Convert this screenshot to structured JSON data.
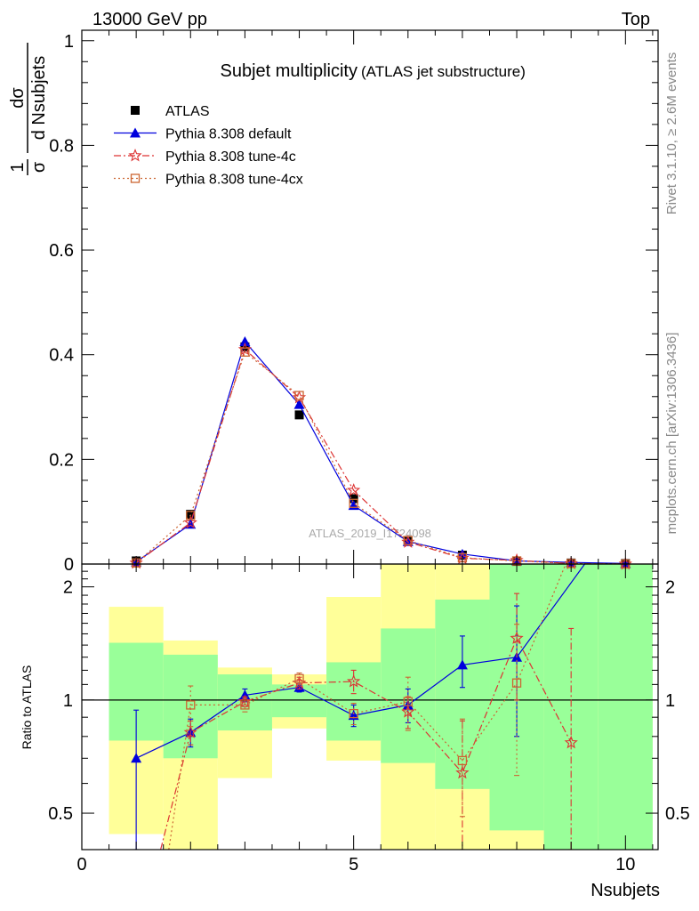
{
  "header": {
    "left": "13000 GeV pp",
    "right": "Top"
  },
  "side_labels": {
    "rivet": "Rivet 3.1.10, ≥ 2.6M events",
    "mcplots": "mcplots.cern.ch [arXiv:1306.3436]"
  },
  "colors": {
    "atlas": "#000000",
    "default": "#0000dd",
    "tune4c": "#dd3333",
    "tune4cx": "#cc6633",
    "band_green": "#99ff99",
    "band_yellow": "#ffff99"
  },
  "chart_data": [
    {
      "type": "scatter",
      "title": "Subjet multiplicity",
      "subtitle": "(ATLAS jet substructure)",
      "ylabel_fraction": {
        "num": "1",
        "den": "σ"
      },
      "ylabel_deriv": {
        "num": "dσ",
        "den": "d Nsubjets"
      },
      "watermark": "ATLAS_2019_I1724098",
      "xlim": [
        0,
        10.6
      ],
      "ylim": [
        0,
        1.02
      ],
      "xticks": [
        0,
        5,
        10
      ],
      "yticks": [
        0,
        0.2,
        0.4,
        0.6,
        0.8,
        1
      ],
      "ytick_labels": [
        "0",
        "0.2",
        "0.4",
        "0.6",
        "0.8",
        "1"
      ],
      "legend_position": "top-left",
      "series": [
        {
          "name": "ATLAS",
          "style": "data",
          "x": [
            1,
            2,
            3,
            4,
            5,
            6,
            7,
            8,
            9,
            10
          ],
          "y": [
            0.006,
            0.095,
            0.415,
            0.285,
            0.125,
            0.045,
            0.017,
            0.005,
            0.002,
            0.001
          ]
        },
        {
          "name": "Pythia 8.308 default",
          "style": "default",
          "x": [
            1,
            2,
            3,
            4,
            5,
            6,
            7,
            8,
            9,
            10
          ],
          "y": [
            0.004,
            0.076,
            0.425,
            0.305,
            0.112,
            0.043,
            0.019,
            0.006,
            0.003,
            0.001
          ]
        },
        {
          "name": "Pythia 8.308 tune-4c",
          "style": "tune4c",
          "x": [
            1,
            2,
            3,
            4,
            5,
            6,
            7,
            8,
            9,
            10
          ],
          "y": [
            0.002,
            0.079,
            0.41,
            0.318,
            0.141,
            0.042,
            0.011,
            0.007,
            0.001,
            0.0
          ]
        },
        {
          "name": "Pythia 8.308 tune-4cx",
          "style": "tune4cx",
          "x": [
            1,
            2,
            3,
            4,
            5,
            6,
            7,
            8,
            9,
            10
          ],
          "y": [
            0.002,
            0.093,
            0.405,
            0.322,
            0.116,
            0.045,
            0.012,
            0.006,
            0.001,
            0.0
          ]
        }
      ]
    },
    {
      "type": "scatter",
      "title": "",
      "xlabel": "Nsubjets",
      "ylabel": "Ratio to ATLAS",
      "xlim": [
        0,
        10.6
      ],
      "ylim": [
        0.4,
        2.3
      ],
      "log_y": true,
      "xticks": [
        0,
        5,
        10
      ],
      "xtick_labels": [
        "0",
        "5",
        "10"
      ],
      "yticks": [
        0.5,
        1,
        2
      ],
      "ytick_labels": [
        "0.5",
        "1",
        "2"
      ],
      "reference_line": 1,
      "bands": {
        "x_low": [
          0.5,
          1.5,
          2.5,
          3.5,
          4.5,
          5.5,
          6.5,
          7.5,
          8.5,
          9.5
        ],
        "x_high": [
          1.5,
          2.5,
          3.5,
          4.5,
          5.5,
          6.5,
          7.5,
          8.5,
          9.5,
          10.5
        ],
        "green_low": [
          0.78,
          0.7,
          0.83,
          0.9,
          0.78,
          0.68,
          0.58,
          0.45,
          0.38,
          0.38
        ],
        "green_high": [
          1.42,
          1.32,
          1.17,
          1.1,
          1.26,
          1.55,
          1.85,
          2.3,
          2.3,
          2.3
        ],
        "yellow_low": [
          0.44,
          0.4,
          0.62,
          0.84,
          0.69,
          0.4,
          0.4,
          0.4,
          0.4,
          0.4
        ],
        "yellow_high": [
          1.77,
          1.44,
          1.22,
          1.17,
          1.88,
          2.3,
          2.3,
          2.3,
          2.3,
          2.3
        ]
      },
      "series": [
        {
          "name": "Pythia 8.308 default",
          "style": "default",
          "x": [
            1,
            2,
            3,
            4,
            5,
            6,
            7,
            8,
            9.25
          ],
          "y": [
            0.7,
            0.82,
            1.03,
            1.08,
            0.91,
            0.97,
            1.24,
            1.3,
            2.3
          ],
          "err_low": [
            0.32,
            0.07,
            0.04,
            0.03,
            0.06,
            0.1,
            0.16,
            0.5,
            0
          ],
          "err_high": [
            0.24,
            0.07,
            0.04,
            0.03,
            0.06,
            0.1,
            0.24,
            0.48,
            0
          ]
        },
        {
          "name": "Pythia 8.308 tune-4c",
          "style": "tune4c",
          "x": [
            1.45,
            2,
            3,
            4,
            5,
            6,
            7,
            8,
            9
          ],
          "y": [
            0.4,
            0.82,
            0.99,
            1.11,
            1.12,
            0.93,
            0.64,
            1.46,
            0.77
          ],
          "err_low": [
            0,
            0.06,
            0.03,
            0.04,
            0.08,
            0.09,
            0.24,
            0.46,
            0.37
          ],
          "err_high": [
            0,
            0.06,
            0.03,
            0.04,
            0.08,
            0.09,
            0.24,
            0.46,
            0.78
          ]
        },
        {
          "name": "Pythia 8.308 tune-4cx",
          "style": "tune4cx",
          "x": [
            1.6,
            2,
            3,
            4,
            5,
            6,
            7,
            8,
            8.9
          ],
          "y": [
            0.4,
            0.97,
            0.97,
            1.14,
            0.92,
            0.99,
            0.69,
            1.11,
            2.3
          ],
          "err_low": [
            0,
            0.12,
            0.04,
            0.04,
            0.06,
            0.16,
            0.2,
            0.48,
            0
          ],
          "err_high": [
            0,
            0.12,
            0.04,
            0.04,
            0.06,
            0.16,
            0.2,
            0.48,
            0
          ]
        }
      ]
    }
  ]
}
